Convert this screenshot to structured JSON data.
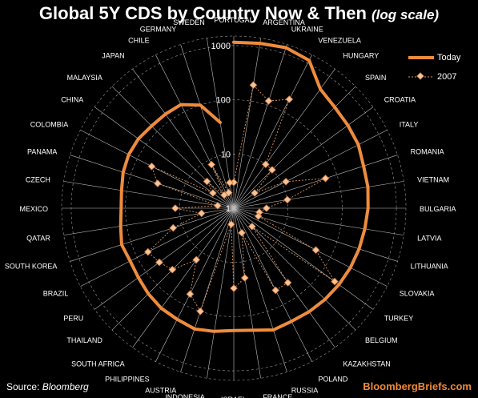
{
  "title": "Global 5Y CDS by Country Now & Then",
  "subtitle": "(log scale)",
  "source": {
    "prefix": "Source:",
    "name": "Bloomberg"
  },
  "brand": "BloombergBriefs.com",
  "colors": {
    "today": "#ef8c3c",
    "y2007": "#f2a97a",
    "grid": "#9a9a9a",
    "text": "#ffffff",
    "background": "#000000"
  },
  "chart_data": {
    "type": "radar",
    "scale": "log",
    "rlim": [
      1,
      1500
    ],
    "ticks": [
      1,
      10,
      100,
      1000
    ],
    "tick_labels": [
      "1",
      "10",
      "100",
      "1000"
    ],
    "grid": true,
    "legend": "top-right",
    "categories": [
      "PORTUGAL",
      "ARGENTINA",
      "UKRAINE",
      "VENEZUELA",
      "HUNGARY",
      "SPAIN",
      "CROATIA",
      "ITALY",
      "ROMANIA",
      "VIETNAM",
      "BULGARIA",
      "LATVIA",
      "LITHUANIA",
      "SLOVAKIA",
      "TURKEY",
      "BELGIUM",
      "KAZAKHSTAN",
      "POLAND",
      "RUSSIA",
      "FRANCE",
      "ISRAEL",
      "INDONESIA",
      "AUSTRIA",
      "PHILIPPINES",
      "SOUTH AFRICA",
      "THAILAND",
      "PERU",
      "BRAZIL",
      "SOUTH KOREA",
      "QATAR",
      "MEXICO",
      "CZECH",
      "PANAMA",
      "COLOMBIA",
      "CHINA",
      "MALAYSIA",
      "JAPAN",
      "CHILE",
      "GERMANY",
      "SWEDEN"
    ],
    "series": [
      {
        "name": "Today",
        "style": "line",
        "values": [
          1150,
          1200,
          1300,
          1150,
          520,
          430,
          400,
          380,
          330,
          320,
          300,
          280,
          270,
          260,
          250,
          240,
          230,
          220,
          230,
          190,
          180,
          200,
          220,
          200,
          190,
          170,
          150,
          140,
          150,
          130,
          120,
          125,
          140,
          150,
          150,
          140,
          140,
          140,
          100,
          40
        ]
      },
      {
        "name": "2007",
        "style": "dashed-markers",
        "values": [
          3,
          200,
          120,
          180,
          10,
          10,
          3,
          12,
          60,
          10,
          4,
          3,
          3,
          50,
          200,
          3,
          50,
          50,
          3,
          20,
          30,
          2,
          100,
          60,
          15,
          40,
          50,
          60,
          15,
          4,
          12,
          2,
          30,
          50,
          3,
          5,
          2,
          8,
          2,
          3
        ]
      }
    ]
  }
}
